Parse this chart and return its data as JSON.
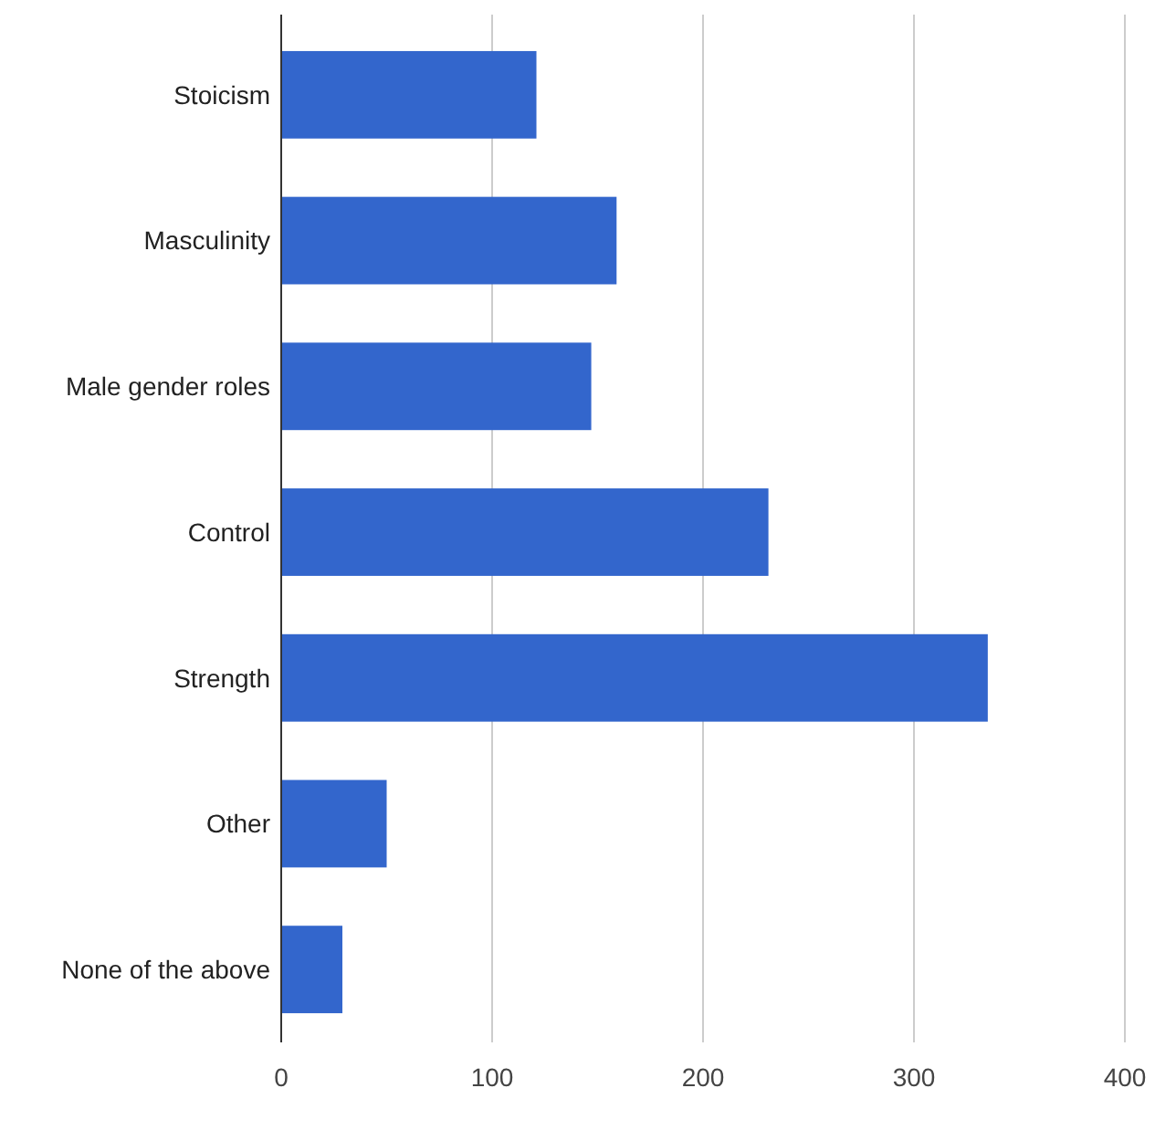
{
  "chart_data": {
    "type": "bar",
    "orientation": "horizontal",
    "categories": [
      "Stoicism",
      "Masculinity",
      "Male gender roles",
      "Control",
      "Strength",
      "Other",
      "None of the above"
    ],
    "values": [
      121,
      159,
      147,
      231,
      335,
      50,
      29
    ],
    "color": "#3366cc",
    "xlim": [
      0,
      400
    ],
    "xticks": [
      0,
      100,
      200,
      300,
      400
    ],
    "grid": "x"
  }
}
